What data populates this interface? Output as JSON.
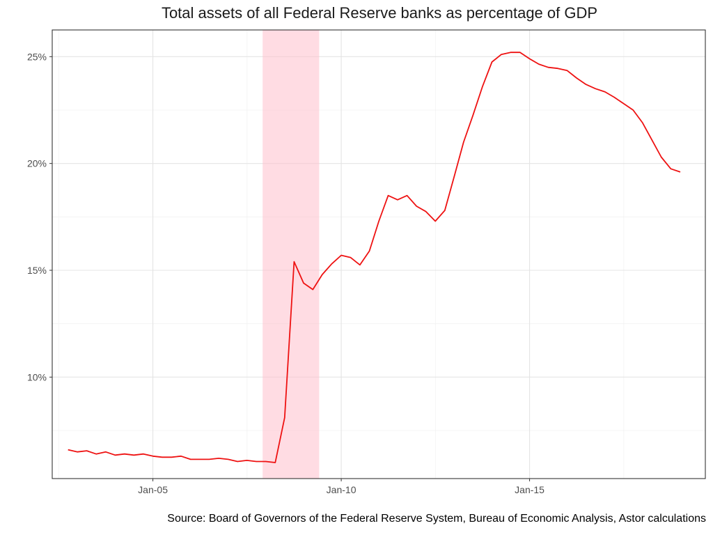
{
  "chart_data": {
    "type": "line",
    "title": "Total assets of all Federal Reserve banks as percentage of GDP",
    "xlabel": "",
    "ylabel": "",
    "x_ticks": [
      {
        "date": "2005-01-01",
        "label": "Jan-05"
      },
      {
        "date": "2010-01-01",
        "label": "Jan-10"
      },
      {
        "date": "2015-01-01",
        "label": "Jan-15"
      }
    ],
    "y_ticks": [
      {
        "value": 10,
        "label": "10%"
      },
      {
        "value": 15,
        "label": "15%"
      },
      {
        "value": 20,
        "label": "20%"
      },
      {
        "value": 25,
        "label": "25%"
      }
    ],
    "xlim": [
      "2002-05-01",
      "2019-09-01"
    ],
    "ylim": [
      5.25,
      26.25
    ],
    "grid": true,
    "line_color": "#ee1111",
    "recession_color": "#ffc0cc",
    "recession": {
      "start": "2007-12-01",
      "end": "2009-06-01"
    },
    "series": [
      {
        "x": [
          "2002-10-01",
          "2003-01-01",
          "2003-04-01",
          "2003-07-01",
          "2003-10-01",
          "2004-01-01",
          "2004-04-01",
          "2004-07-01",
          "2004-10-01",
          "2005-01-01",
          "2005-04-01",
          "2005-07-01",
          "2005-10-01",
          "2006-01-01",
          "2006-04-01",
          "2006-07-01",
          "2006-10-01",
          "2007-01-01",
          "2007-04-01",
          "2007-07-01",
          "2007-10-01",
          "2008-01-01",
          "2008-04-01",
          "2008-07-01",
          "2008-10-01",
          "2009-01-01",
          "2009-04-01",
          "2009-07-01",
          "2009-10-01",
          "2010-01-01",
          "2010-04-01",
          "2010-07-01",
          "2010-10-01",
          "2011-01-01",
          "2011-04-01",
          "2011-07-01",
          "2011-10-01",
          "2012-01-01",
          "2012-04-01",
          "2012-07-01",
          "2012-10-01",
          "2013-01-01",
          "2013-04-01",
          "2013-07-01",
          "2013-10-01",
          "2014-01-01",
          "2014-04-01",
          "2014-07-01",
          "2014-10-01",
          "2015-01-01",
          "2015-04-01",
          "2015-07-01",
          "2015-10-01",
          "2016-01-01",
          "2016-04-01",
          "2016-07-01",
          "2016-10-01",
          "2017-01-01",
          "2017-04-01",
          "2017-07-01",
          "2017-10-01",
          "2018-01-01",
          "2018-04-01",
          "2018-07-01",
          "2018-10-01",
          "2019-01-01"
        ],
        "values": [
          6.6,
          6.5,
          6.55,
          6.4,
          6.5,
          6.35,
          6.4,
          6.35,
          6.4,
          6.3,
          6.25,
          6.25,
          6.3,
          6.15,
          6.15,
          6.15,
          6.2,
          6.15,
          6.05,
          6.1,
          6.05,
          6.05,
          6.0,
          8.1,
          15.4,
          14.4,
          14.1,
          14.8,
          15.3,
          15.7,
          15.6,
          15.25,
          15.9,
          17.3,
          18.5,
          18.3,
          18.5,
          18.0,
          17.75,
          17.3,
          17.8,
          19.4,
          21.0,
          22.25,
          23.6,
          24.75,
          25.1,
          25.2,
          25.2,
          24.9,
          24.65,
          24.5,
          24.45,
          24.35,
          24.0,
          23.7,
          23.5,
          23.35,
          23.1,
          22.8,
          22.5,
          21.9,
          21.1,
          20.3,
          19.75,
          19.6
        ]
      }
    ]
  },
  "source_note": "Source: Board of Governors of the Federal Reserve System, Bureau of Economic Analysis, Astor calculations"
}
